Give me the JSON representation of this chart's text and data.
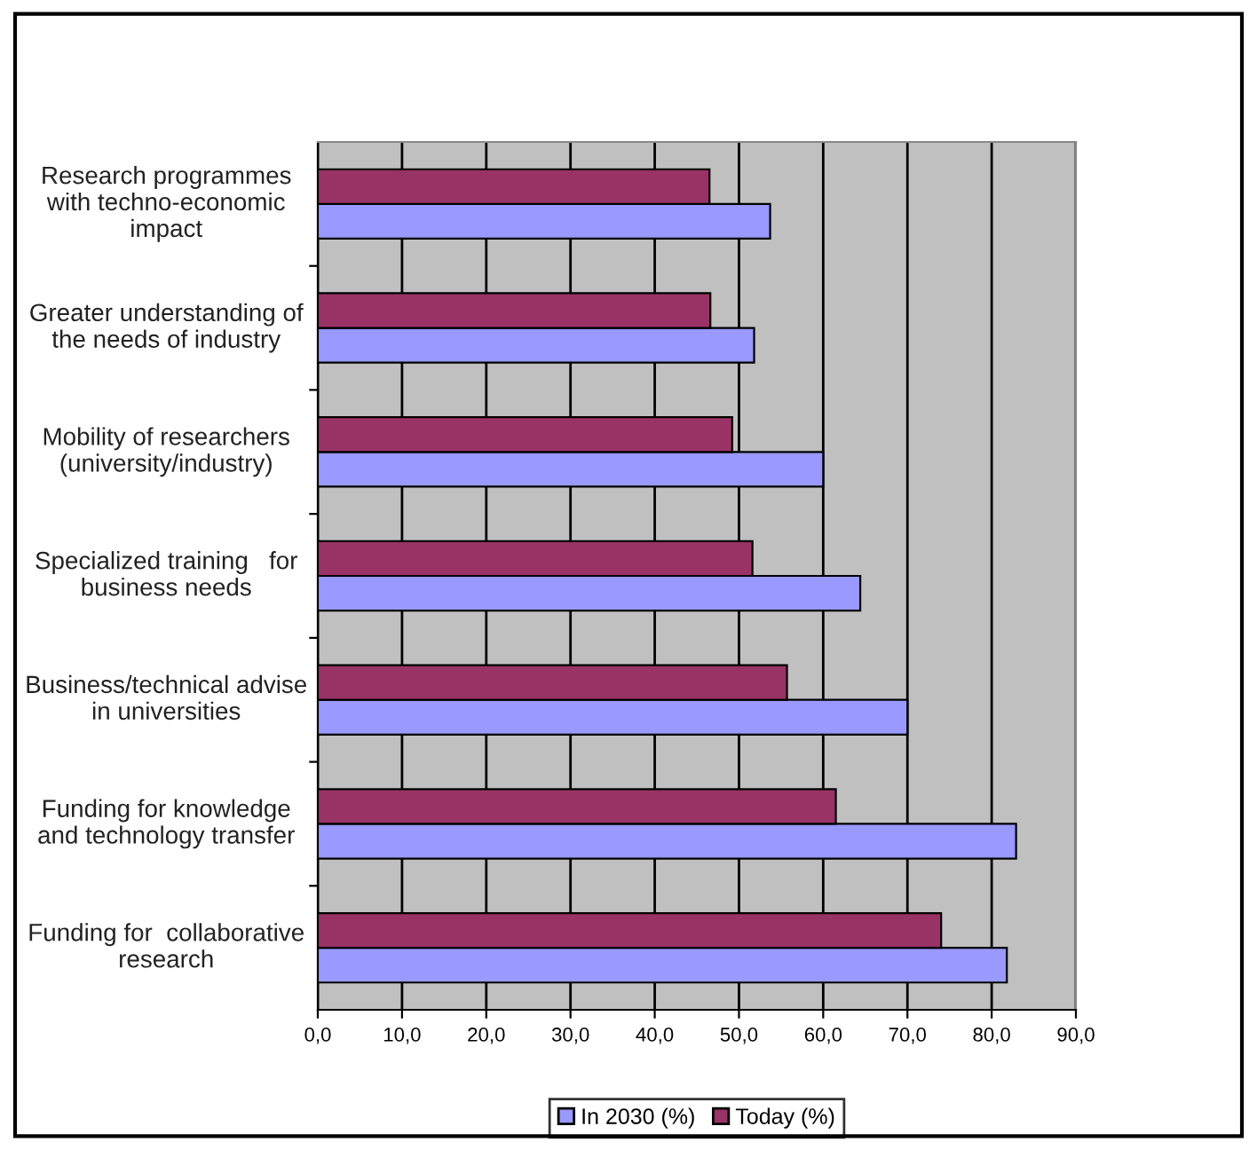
{
  "chart_data": {
    "type": "bar",
    "orientation": "horizontal",
    "categories": [
      "Research programmes\nwith techno-economic\nimpact",
      "Greater understanding of\nthe needs of industry",
      "Mobility of researchers\n(university/industry)",
      "Specialized training   for\nbusiness needs",
      "Business/technical advise\nin universities",
      "Funding for knowledge\nand technology transfer",
      "Funding for  collaborative\nresearch"
    ],
    "series": [
      {
        "name": "In 2030 (%)",
        "color": "#9999ff",
        "values": [
          53.7,
          51.8,
          60.0,
          64.4,
          70.0,
          82.9,
          81.8
        ]
      },
      {
        "name": "Today (%)",
        "color": "#993366",
        "values": [
          46.5,
          46.6,
          49.2,
          51.6,
          55.7,
          61.5,
          74.0
        ]
      }
    ],
    "xlim": [
      0,
      90
    ],
    "xticks": [
      {
        "value": 0,
        "label": "0,0"
      },
      {
        "value": 10,
        "label": "10,0"
      },
      {
        "value": 20,
        "label": "20,0"
      },
      {
        "value": 30,
        "label": "30,0"
      },
      {
        "value": 40,
        "label": "40,0"
      },
      {
        "value": 50,
        "label": "50,0"
      },
      {
        "value": 60,
        "label": "60,0"
      },
      {
        "value": 70,
        "label": "70,0"
      },
      {
        "value": 80,
        "label": "80,0"
      },
      {
        "value": 90,
        "label": "90,0"
      }
    ],
    "grid": "x",
    "legend": "bottom"
  }
}
